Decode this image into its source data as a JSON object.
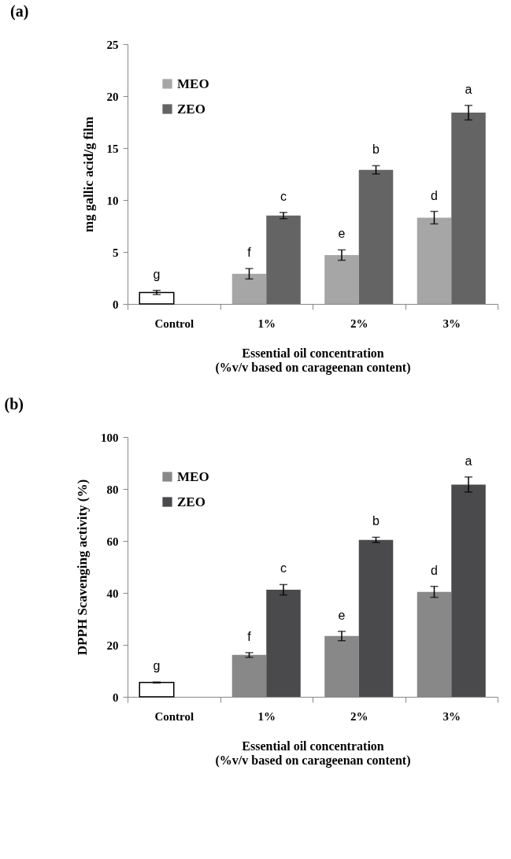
{
  "chart_data": [
    {
      "type": "bar",
      "title": "(a)",
      "xlabel": "Essential oil concentration\n(%v/v based on carageenan content)",
      "ylabel": "mg gallic acid/g film",
      "categories": [
        "Control",
        "1%",
        "2%",
        "3%"
      ],
      "series": [
        {
          "color": "#ffffff",
          "values": [
            1.1,
            null,
            null,
            null
          ],
          "errors": [
            0.2,
            null,
            null,
            null
          ]
        },
        {
          "name": "MEO",
          "color": "#a6a6a6",
          "values": [
            null,
            2.9,
            4.7,
            8.3
          ],
          "errors": [
            null,
            0.5,
            0.5,
            0.6
          ]
        },
        {
          "name": "ZEO",
          "color": "#646464",
          "values": [
            null,
            8.5,
            12.9,
            18.4
          ],
          "errors": [
            null,
            0.3,
            0.4,
            0.7
          ]
        }
      ],
      "ylim": [
        0,
        25
      ],
      "yticks": [
        0,
        5,
        10,
        15,
        20,
        25
      ],
      "legend": "top left",
      "annotations": [
        {
          "text": "g",
          "x": "Control",
          "y": 1.1
        },
        {
          "text": "f",
          "x": "1%",
          "y": 2.9
        },
        {
          "text": "c",
          "x": "1%",
          "y": 8.5
        },
        {
          "text": "e",
          "x": "2%",
          "y": 4.7
        },
        {
          "text": "b",
          "x": "2%",
          "y": 12.9
        },
        {
          "text": "d",
          "x": "3%",
          "y": 8.3
        },
        {
          "text": "a",
          "x": "3%",
          "y": 18.4
        }
      ]
    },
    {
      "type": "bar",
      "title": "(b)",
      "xlabel": "Essential oil concentration\n(%v/v based on carageenan content)",
      "ylabel": "DPPH Scavenging activity (%)",
      "categories": [
        "Control",
        "1%",
        "2%",
        "3%"
      ],
      "series": [
        {
          "color": "#ffffff",
          "values": [
            5.5,
            null,
            null,
            null
          ],
          "errors": [
            0.2,
            null,
            null,
            null
          ]
        },
        {
          "name": "MEO",
          "color": "#888888",
          "values": [
            null,
            16.1,
            23.4,
            40.4
          ],
          "errors": [
            null,
            0.9,
            1.8,
            2.1
          ]
        },
        {
          "name": "ZEO",
          "color": "#4a4a4d",
          "values": [
            null,
            41.2,
            60.4,
            81.7
          ],
          "errors": [
            null,
            2.0,
            1.0,
            2.9
          ]
        }
      ],
      "ylim": [
        0,
        100
      ],
      "yticks": [
        0,
        20,
        40,
        60,
        80,
        100
      ],
      "legend": "top left",
      "annotations": [
        {
          "text": "g",
          "x": "Control",
          "y": 5.5
        },
        {
          "text": "f",
          "x": "1%",
          "y": 16.1
        },
        {
          "text": "c",
          "x": "1%",
          "y": 41.2
        },
        {
          "text": "e",
          "x": "2%",
          "y": 23.4
        },
        {
          "text": "b",
          "x": "2%",
          "y": 60.4
        },
        {
          "text": "d",
          "x": "3%",
          "y": 40.4
        },
        {
          "text": "a",
          "x": "3%",
          "y": 81.7
        }
      ]
    }
  ]
}
